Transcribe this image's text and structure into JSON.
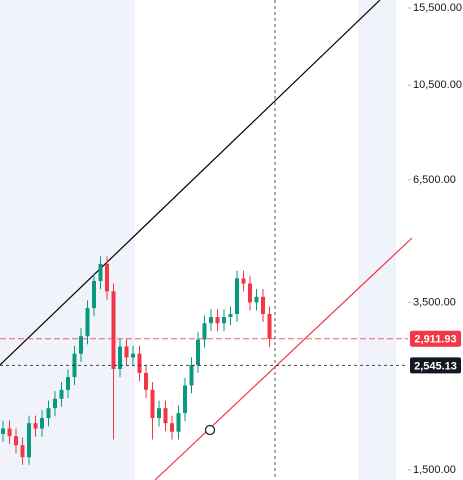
{
  "chart_data": {
    "type": "candlestick",
    "categories": [
      null,
      null,
      null,
      null,
      null,
      null,
      null,
      null,
      null,
      null,
      null,
      null,
      null,
      null,
      null,
      null,
      null,
      null,
      null,
      null,
      null,
      null,
      null,
      null,
      null,
      null,
      null,
      null,
      null,
      null,
      null,
      null,
      null,
      null,
      null,
      null,
      null,
      null,
      null,
      null,
      null,
      null
    ],
    "open": [
      1800,
      1850,
      1780,
      1700,
      1600,
      1900,
      1850,
      1950,
      2050,
      2150,
      2250,
      2400,
      2700,
      2950,
      3400,
      3900,
      4250,
      3700,
      2500,
      2800,
      2650,
      2700,
      2450,
      2250,
      1950,
      2050,
      1900,
      1820,
      2000,
      2300,
      2550,
      2900,
      3150,
      3250,
      3150,
      3250,
      3300,
      3950,
      3850,
      3500,
      3600,
      3300
    ],
    "high": [
      1925,
      1925,
      1850,
      1770,
      1975,
      1975,
      2030,
      2130,
      2235,
      2340,
      2495,
      2810,
      3070,
      3535,
      4055,
      4420,
      4420,
      3850,
      2910,
      2910,
      2810,
      2810,
      2550,
      2340,
      2130,
      2130,
      1975,
      2080,
      2390,
      2650,
      3015,
      3275,
      3380,
      3380,
      3380,
      3430,
      4110,
      4110,
      4005,
      3745,
      3745,
      3430
    ],
    "low": [
      1730,
      1710,
      1630,
      1540,
      1540,
      1775,
      1775,
      1870,
      1970,
      2065,
      2160,
      2305,
      2590,
      2830,
      3265,
      3745,
      3550,
      1750,
      2400,
      2545,
      2545,
      2350,
      2160,
      1750,
      1870,
      1825,
      1750,
      1750,
      1920,
      2210,
      2450,
      2785,
      3025,
      3025,
      3025,
      3120,
      3170,
      3700,
      3360,
      3360,
      3170,
      2795
    ],
    "close": [
      1850,
      1780,
      1700,
      1600,
      1900,
      1850,
      1950,
      2050,
      2150,
      2250,
      2400,
      2700,
      2950,
      3400,
      3900,
      4250,
      3700,
      2500,
      2800,
      2650,
      2700,
      2450,
      2250,
      1950,
      2050,
      1900,
      1820,
      2000,
      2300,
      2550,
      2900,
      3150,
      3250,
      3150,
      3250,
      3300,
      3950,
      3850,
      3500,
      3600,
      3300,
      2911.93
    ],
    "up_color": "#089981",
    "down_color": "#f23645",
    "log_scale": true,
    "grid": false,
    "ylim": [
      1426,
      16140
    ],
    "yticks": [
      {
        "value": 1500,
        "label": "1,500.00"
      },
      {
        "value": 3500,
        "label": "3,500.00"
      },
      {
        "value": 6500,
        "label": "6,500.00"
      },
      {
        "value": 10500,
        "label": "10,500.00"
      },
      {
        "value": 15500,
        "label": "15,500.00"
      }
    ],
    "last_price": {
      "value": 2911.93,
      "label": "2,911.93",
      "color": "#f23645"
    },
    "crosshair_price": {
      "value": 2545.13,
      "label": "2,545.13",
      "color": "#131722"
    }
  }
}
